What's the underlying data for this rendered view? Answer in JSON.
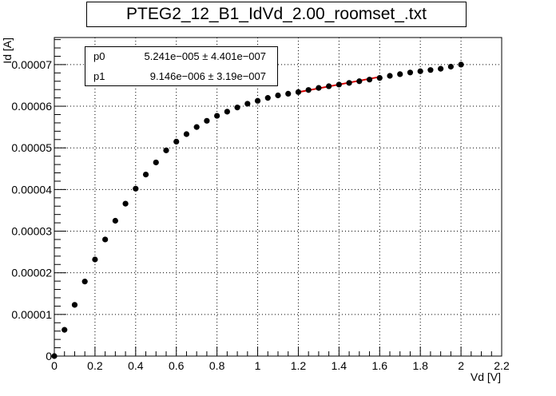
{
  "title": "PTEG2_12_B1_IdVd_2.00_roomset_.txt",
  "stats": [
    {
      "name": "p0",
      "value": "5.241e−005 ± 4.401e−007"
    },
    {
      "name": "p1",
      "value": "9.146e−006 ± 3.19e−007"
    }
  ],
  "colors": {
    "points": "#000000",
    "fit": "#d40000",
    "grid": "#000000"
  },
  "chart_data": {
    "type": "scatter",
    "xlabel": "Vd [V]",
    "ylabel": "Id [A]",
    "xlim": [
      0,
      2.2
    ],
    "ylim": [
      0,
      7.65e-05
    ],
    "grid": true,
    "x_ticks": [
      0,
      0.2,
      0.4,
      0.6,
      0.8,
      1,
      1.2,
      1.4,
      1.6,
      1.8,
      2,
      2.2
    ],
    "x_tick_labels": [
      "0",
      "0.2",
      "0.4",
      "0.6",
      "0.8",
      "1",
      "1.2",
      "1.4",
      "1.6",
      "1.8",
      "2",
      "2.2"
    ],
    "y_ticks": [
      0,
      1e-05,
      2e-05,
      3e-05,
      4e-05,
      5e-05,
      6e-05,
      7e-05
    ],
    "y_tick_labels": [
      "0",
      "0.00001",
      "0.00002",
      "0.00003",
      "0.00004",
      "0.00005",
      "0.00006",
      "0.00007"
    ],
    "series": [
      {
        "x": [
          0,
          0.05,
          0.1,
          0.15,
          0.2,
          0.25,
          0.3,
          0.35,
          0.4,
          0.45,
          0.5,
          0.55,
          0.6,
          0.65,
          0.7,
          0.75,
          0.8,
          0.85,
          0.9,
          0.95,
          1.0,
          1.05,
          1.1,
          1.15,
          1.2,
          1.25,
          1.3,
          1.35,
          1.4,
          1.45,
          1.5,
          1.55,
          1.6,
          1.65,
          1.7,
          1.75,
          1.8,
          1.85,
          1.9,
          1.95,
          2.0
        ],
        "y": [
          0,
          6.3e-06,
          1.23e-05,
          1.79e-05,
          2.32e-05,
          2.8e-05,
          3.25e-05,
          3.66e-05,
          4.02e-05,
          4.36e-05,
          4.65e-05,
          4.94e-05,
          5.15e-05,
          5.33e-05,
          5.5e-05,
          5.65e-05,
          5.77e-05,
          5.87e-05,
          5.97e-05,
          6.06e-05,
          6.13e-05,
          6.2e-05,
          6.26e-05,
          6.3e-05,
          6.34e-05,
          6.39e-05,
          6.44e-05,
          6.48e-05,
          6.52e-05,
          6.56e-05,
          6.6e-05,
          6.64e-05,
          6.68e-05,
          6.73e-05,
          6.77e-05,
          6.81e-05,
          6.84e-05,
          6.87e-05,
          6.9e-05,
          6.95e-05,
          7e-05
        ]
      }
    ],
    "fit": {
      "x_range": [
        1.2,
        1.6
      ],
      "p0": 5.241e-05,
      "p1": 9.146e-06
    }
  }
}
